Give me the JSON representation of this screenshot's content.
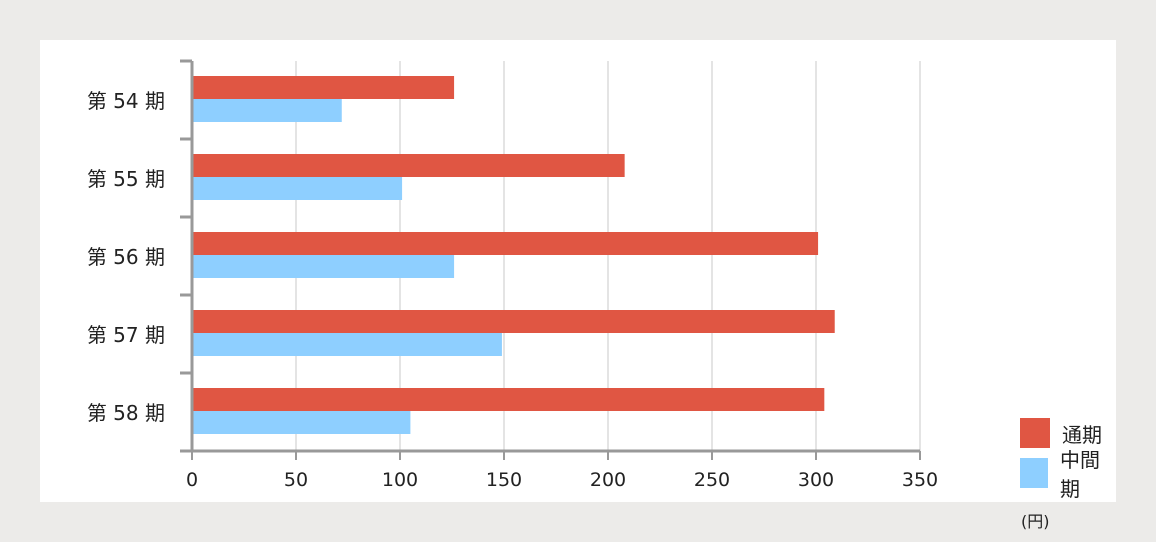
{
  "colors": {
    "full_year": "#e05643",
    "interim": "#8ecfff",
    "grid": "#c8c8c8",
    "axis": "#999999"
  },
  "chart_data": {
    "type": "bar",
    "orientation": "horizontal",
    "categories": [
      "第 54 期",
      "第 55 期",
      "第 56 期",
      "第 57 期",
      "第 58 期"
    ],
    "series": [
      {
        "name": "通期",
        "values": [
          126,
          208,
          301,
          309,
          304
        ]
      },
      {
        "name": "中間期",
        "values": [
          72,
          101,
          126,
          149,
          105
        ]
      }
    ],
    "xlim": [
      0,
      350
    ],
    "xticks": [
      0,
      50,
      100,
      150,
      200,
      250,
      300,
      350
    ],
    "unit": "(円)",
    "grid": "vertical",
    "legend": "bottom-right"
  }
}
